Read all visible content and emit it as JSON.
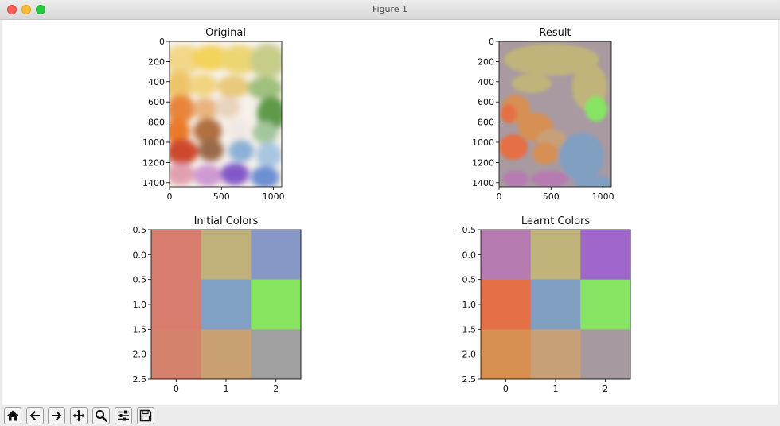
{
  "window": {
    "title": "Figure 1"
  },
  "figure": {
    "original": {
      "title": "Original",
      "yticks": [
        "0",
        "200",
        "400",
        "600",
        "800",
        "1000",
        "1200",
        "1400"
      ],
      "xticks": [
        "0",
        "500",
        "1000"
      ]
    },
    "result": {
      "title": "Result",
      "yticks": [
        "0",
        "200",
        "400",
        "600",
        "800",
        "1000",
        "1200",
        "1400"
      ],
      "xticks": [
        "0",
        "500",
        "1000"
      ]
    },
    "initial": {
      "title": "Initial Colors",
      "yticks": [
        "−0.5",
        "0.0",
        "0.5",
        "1.0",
        "1.5",
        "2.0",
        "2.5"
      ],
      "xticks": [
        "0",
        "1",
        "2"
      ],
      "cells": [
        [
          "#d87d6d",
          "#c0b079",
          "#8898c6"
        ],
        [
          "#d87d6d",
          "#80a1c4",
          "#86e45f"
        ],
        [
          "#d5826d",
          "#c8a072",
          "#a0a0a0"
        ]
      ]
    },
    "learnt": {
      "title": "Learnt Colors",
      "yticks": [
        "−0.5",
        "0.0",
        "0.5",
        "1.0",
        "1.5",
        "2.0",
        "2.5"
      ],
      "xticks": [
        "0",
        "1",
        "2"
      ],
      "cells": [
        [
          "#b67cb1",
          "#c0b47a",
          "#9f67cb"
        ],
        [
          "#e57045",
          "#819fc1",
          "#86e462"
        ],
        [
          "#d78f52",
          "#c8a078",
          "#a69aa0"
        ]
      ]
    }
  },
  "toolbar": {
    "buttons": [
      {
        "name": "home-button",
        "icon": "home-icon"
      },
      {
        "name": "back-button",
        "icon": "arrow-left-icon"
      },
      {
        "name": "forward-button",
        "icon": "arrow-right-icon"
      },
      {
        "name": "pan-button",
        "icon": "move-icon"
      },
      {
        "name": "zoom-button",
        "icon": "magnifier-icon"
      },
      {
        "name": "configure-subplots-button",
        "icon": "sliders-icon"
      },
      {
        "name": "save-button",
        "icon": "floppy-icon"
      }
    ]
  }
}
